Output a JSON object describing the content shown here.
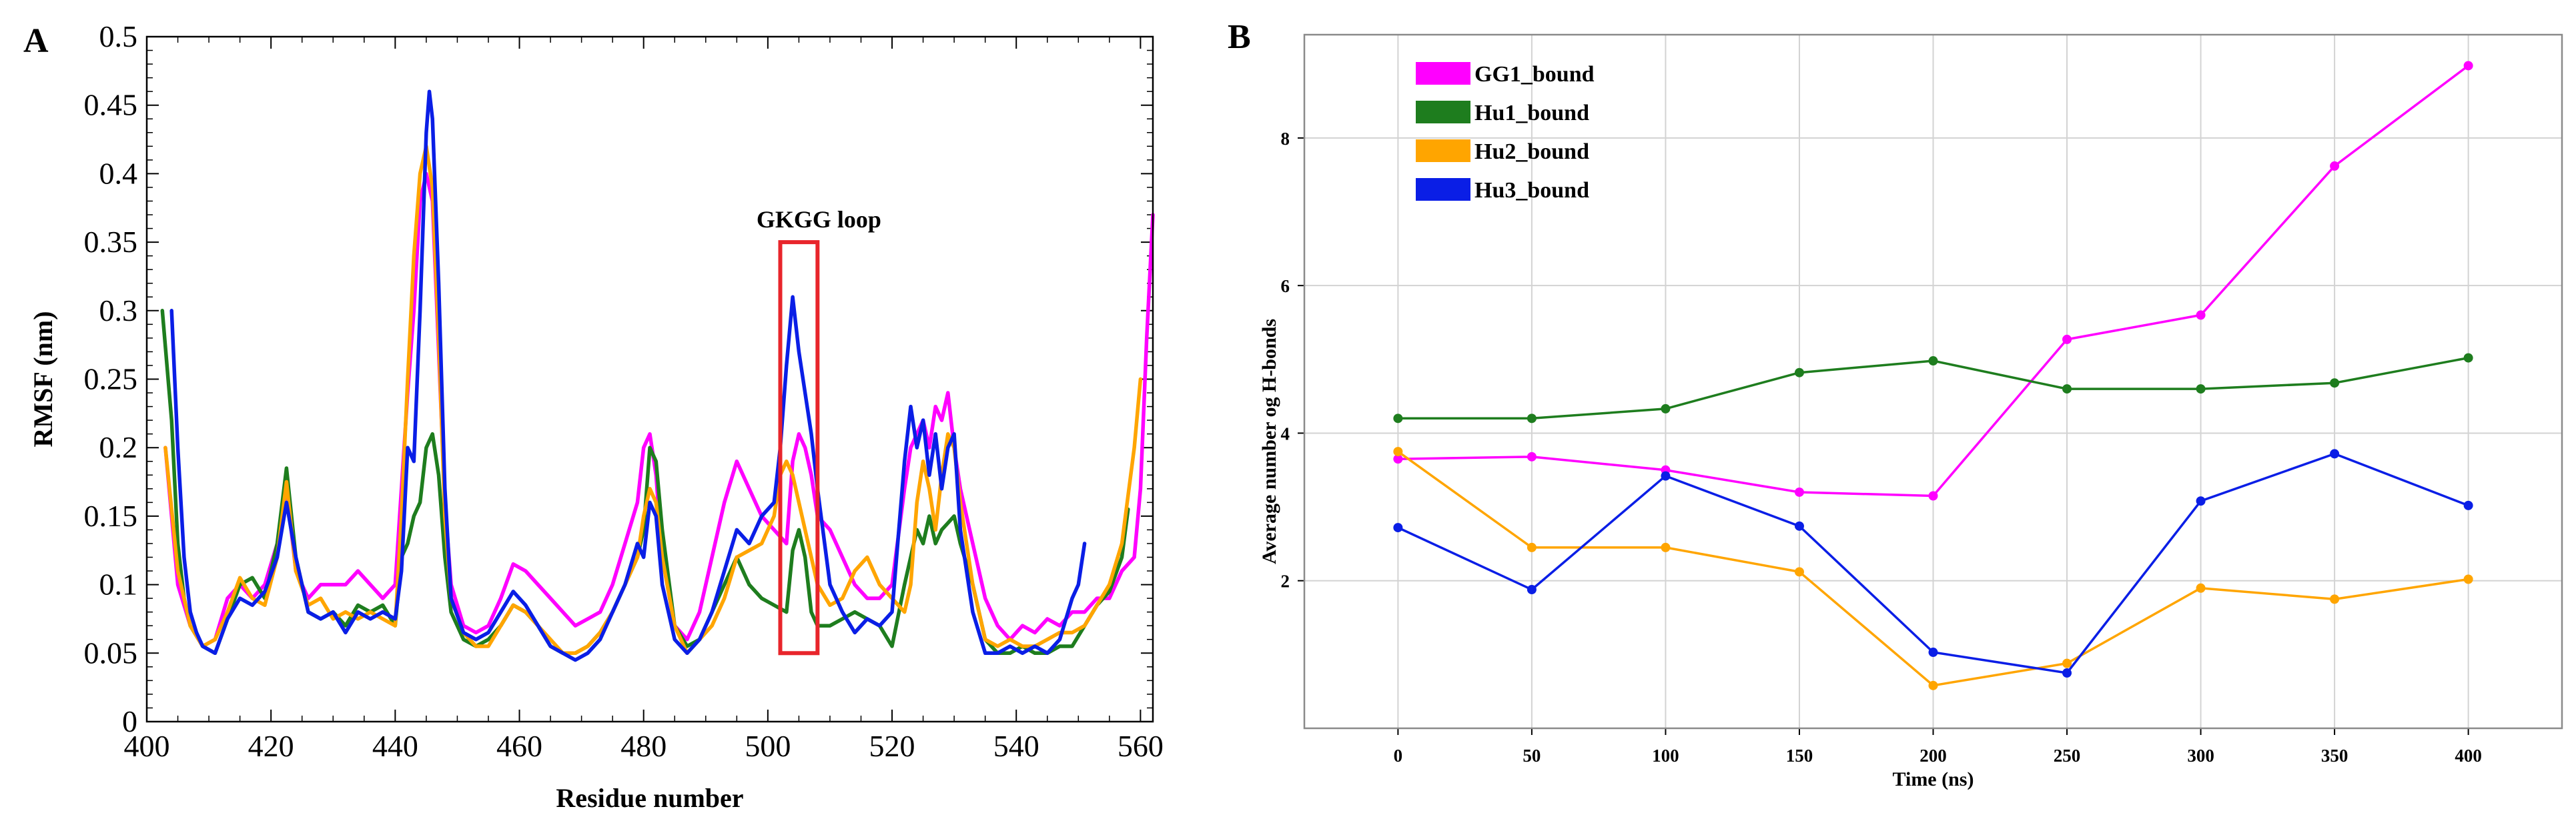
{
  "chart_data": [
    {
      "panel": "A",
      "type": "line",
      "title": "",
      "xlabel": "Residue number",
      "ylabel": "RMSF (nm)",
      "xlim": [
        400,
        562
      ],
      "ylim": [
        0,
        0.5
      ],
      "xticks": [
        400,
        420,
        440,
        460,
        480,
        500,
        520,
        540,
        560
      ],
      "yticks": [
        0,
        0.05,
        0.1,
        0.15,
        0.2,
        0.25,
        0.3,
        0.35,
        0.4,
        0.45,
        0.5
      ],
      "ytick_labels": [
        "0",
        "0.05",
        "0.1",
        "0.15",
        "0.2",
        "0.25",
        "0.3",
        "0.35",
        "0.4",
        "0.45",
        "0.5"
      ],
      "grid": false,
      "annotation": {
        "label": "GKGG loop",
        "x_range": [
          502,
          508
        ],
        "y_range": [
          0.05,
          0.35
        ],
        "color": "#e8252b"
      },
      "series": [
        {
          "name": "GG1_bound",
          "color": "#ff00ff",
          "x": [
            403,
            405,
            407,
            409,
            411,
            413,
            415,
            417,
            419,
            421,
            422.5,
            424,
            426,
            428,
            430,
            432,
            434,
            436,
            438,
            440,
            441,
            442,
            443,
            444,
            445,
            446,
            447,
            448,
            449,
            451,
            453,
            455,
            457,
            459,
            461,
            463,
            465,
            467,
            469,
            471,
            473,
            475,
            477,
            479,
            480,
            481,
            482,
            483,
            485,
            487,
            489,
            491,
            493,
            495,
            497,
            499,
            501,
            503,
            504,
            505,
            506,
            507,
            508,
            510,
            512,
            514,
            516,
            518,
            520,
            522,
            523,
            524,
            525,
            526,
            527,
            528,
            529,
            530,
            531,
            533,
            535,
            537,
            539,
            541,
            543,
            545,
            547,
            549,
            551,
            553,
            555,
            557,
            559,
            560,
            561,
            562
          ],
          "y": [
            0.2,
            0.1,
            0.07,
            0.055,
            0.06,
            0.09,
            0.1,
            0.09,
            0.1,
            0.13,
            0.17,
            0.11,
            0.09,
            0.1,
            0.1,
            0.1,
            0.11,
            0.1,
            0.09,
            0.1,
            0.17,
            0.24,
            0.3,
            0.38,
            0.4,
            0.38,
            0.27,
            0.16,
            0.1,
            0.07,
            0.065,
            0.07,
            0.09,
            0.115,
            0.11,
            0.1,
            0.09,
            0.08,
            0.07,
            0.075,
            0.08,
            0.1,
            0.13,
            0.16,
            0.2,
            0.21,
            0.18,
            0.12,
            0.07,
            0.06,
            0.08,
            0.12,
            0.16,
            0.19,
            0.17,
            0.15,
            0.14,
            0.13,
            0.19,
            0.21,
            0.2,
            0.18,
            0.15,
            0.14,
            0.12,
            0.1,
            0.09,
            0.09,
            0.1,
            0.17,
            0.2,
            0.21,
            0.22,
            0.2,
            0.23,
            0.22,
            0.24,
            0.2,
            0.17,
            0.13,
            0.09,
            0.07,
            0.06,
            0.07,
            0.065,
            0.075,
            0.07,
            0.08,
            0.08,
            0.09,
            0.09,
            0.11,
            0.12,
            0.17,
            0.28,
            0.37
          ]
        },
        {
          "name": "Hu1_bound",
          "color": "#1e7d1e",
          "x": [
            402.5,
            404,
            405,
            406,
            407,
            409,
            411,
            413,
            415,
            417,
            419,
            421,
            422.5,
            424,
            426,
            428,
            430,
            432,
            434,
            436,
            438,
            440,
            441,
            442,
            443,
            444,
            445,
            446,
            447,
            448,
            449,
            451,
            453,
            455,
            457,
            459,
            461,
            463,
            465,
            467,
            469,
            471,
            473,
            475,
            477,
            479,
            480,
            481,
            482,
            483,
            485,
            487,
            489,
            491,
            493,
            495,
            497,
            499,
            501,
            503,
            504,
            505,
            506,
            507,
            508,
            510,
            512,
            514,
            516,
            518,
            520,
            522,
            523,
            524,
            525,
            526,
            527,
            528,
            529,
            530,
            531,
            533,
            535,
            537,
            539,
            541,
            543,
            545,
            547,
            549,
            551,
            553,
            555,
            557,
            558
          ],
          "y": [
            0.3,
            0.22,
            0.13,
            0.09,
            0.07,
            0.055,
            0.05,
            0.075,
            0.1,
            0.105,
            0.09,
            0.13,
            0.185,
            0.12,
            0.08,
            0.075,
            0.08,
            0.07,
            0.085,
            0.08,
            0.085,
            0.07,
            0.12,
            0.13,
            0.15,
            0.16,
            0.2,
            0.21,
            0.18,
            0.12,
            0.08,
            0.06,
            0.055,
            0.06,
            0.07,
            0.085,
            0.08,
            0.07,
            0.055,
            0.05,
            0.05,
            0.055,
            0.065,
            0.08,
            0.1,
            0.12,
            0.14,
            0.2,
            0.19,
            0.14,
            0.07,
            0.055,
            0.06,
            0.08,
            0.1,
            0.12,
            0.1,
            0.09,
            0.085,
            0.08,
            0.125,
            0.14,
            0.12,
            0.08,
            0.07,
            0.07,
            0.075,
            0.08,
            0.075,
            0.07,
            0.055,
            0.1,
            0.12,
            0.14,
            0.13,
            0.15,
            0.13,
            0.14,
            0.145,
            0.15,
            0.13,
            0.1,
            0.06,
            0.05,
            0.05,
            0.055,
            0.05,
            0.05,
            0.055,
            0.055,
            0.07,
            0.085,
            0.095,
            0.12,
            0.155
          ]
        },
        {
          "name": "Hu2_bound",
          "color": "#ffa500",
          "x": [
            403,
            405,
            407,
            409,
            411,
            413,
            415,
            417,
            419,
            421,
            422.5,
            424,
            426,
            428,
            430,
            432,
            434,
            436,
            438,
            440,
            441,
            442,
            443,
            444,
            445,
            446,
            447,
            448,
            449,
            451,
            453,
            455,
            457,
            459,
            461,
            463,
            465,
            467,
            469,
            471,
            473,
            475,
            477,
            479,
            480,
            481,
            482,
            483,
            485,
            487,
            489,
            491,
            493,
            495,
            497,
            499,
            501,
            502,
            503,
            504,
            505,
            506,
            507,
            508,
            510,
            512,
            514,
            516,
            518,
            520,
            522,
            523,
            524,
            525,
            526,
            527,
            528,
            529,
            530,
            531,
            533,
            535,
            537,
            539,
            541,
            543,
            545,
            547,
            549,
            551,
            553,
            555,
            557,
            559,
            560
          ],
          "y": [
            0.2,
            0.11,
            0.07,
            0.055,
            0.06,
            0.08,
            0.105,
            0.09,
            0.085,
            0.12,
            0.175,
            0.11,
            0.085,
            0.09,
            0.075,
            0.08,
            0.075,
            0.08,
            0.075,
            0.07,
            0.15,
            0.25,
            0.34,
            0.4,
            0.42,
            0.39,
            0.28,
            0.15,
            0.09,
            0.065,
            0.055,
            0.055,
            0.07,
            0.085,
            0.08,
            0.07,
            0.06,
            0.05,
            0.05,
            0.055,
            0.065,
            0.08,
            0.1,
            0.12,
            0.15,
            0.17,
            0.16,
            0.12,
            0.07,
            0.05,
            0.06,
            0.07,
            0.09,
            0.12,
            0.125,
            0.13,
            0.15,
            0.18,
            0.19,
            0.18,
            0.16,
            0.14,
            0.12,
            0.1,
            0.085,
            0.09,
            0.11,
            0.12,
            0.1,
            0.09,
            0.08,
            0.1,
            0.16,
            0.19,
            0.17,
            0.14,
            0.18,
            0.21,
            0.2,
            0.16,
            0.1,
            0.06,
            0.055,
            0.06,
            0.055,
            0.055,
            0.06,
            0.065,
            0.065,
            0.07,
            0.085,
            0.1,
            0.13,
            0.2,
            0.25
          ]
        },
        {
          "name": "Hu3_bound",
          "color": "#0a1ee6",
          "x": [
            404,
            405,
            406,
            407,
            408,
            409,
            411,
            413,
            415,
            417,
            419,
            421,
            422.5,
            424,
            426,
            428,
            430,
            432,
            434,
            436,
            438,
            440,
            441,
            442,
            443,
            444,
            445,
            445.5,
            446,
            447,
            448,
            449,
            451,
            453,
            455,
            457,
            459,
            461,
            463,
            465,
            467,
            469,
            471,
            473,
            475,
            477,
            479,
            480,
            481,
            482,
            483,
            485,
            487,
            489,
            491,
            493,
            495,
            497,
            499,
            501,
            502,
            503,
            504,
            505,
            506,
            507,
            508,
            510,
            512,
            514,
            516,
            518,
            520,
            522,
            523,
            524,
            525,
            526,
            527,
            528,
            529,
            530,
            531,
            533,
            535,
            537,
            539,
            541,
            543,
            545,
            547,
            549,
            550,
            551
          ],
          "y": [
            0.3,
            0.2,
            0.12,
            0.08,
            0.065,
            0.055,
            0.05,
            0.075,
            0.09,
            0.085,
            0.095,
            0.12,
            0.16,
            0.12,
            0.08,
            0.075,
            0.08,
            0.065,
            0.08,
            0.075,
            0.08,
            0.075,
            0.11,
            0.2,
            0.19,
            0.3,
            0.43,
            0.46,
            0.44,
            0.32,
            0.17,
            0.09,
            0.065,
            0.06,
            0.065,
            0.08,
            0.095,
            0.085,
            0.07,
            0.055,
            0.05,
            0.045,
            0.05,
            0.06,
            0.08,
            0.1,
            0.13,
            0.12,
            0.16,
            0.15,
            0.1,
            0.06,
            0.05,
            0.06,
            0.08,
            0.11,
            0.14,
            0.13,
            0.15,
            0.16,
            0.2,
            0.26,
            0.31,
            0.27,
            0.24,
            0.21,
            0.17,
            0.1,
            0.08,
            0.065,
            0.075,
            0.07,
            0.08,
            0.19,
            0.23,
            0.2,
            0.22,
            0.18,
            0.21,
            0.17,
            0.2,
            0.21,
            0.14,
            0.08,
            0.05,
            0.05,
            0.055,
            0.05,
            0.055,
            0.05,
            0.06,
            0.09,
            0.1,
            0.13
          ]
        }
      ]
    },
    {
      "panel": "B",
      "type": "line",
      "title": "",
      "xlabel": "Time (ns)",
      "ylabel": "Average number og H-bonds",
      "xlim": [
        -35,
        435
      ],
      "ylim": [
        0,
        9.4
      ],
      "xticks": [
        0,
        50,
        100,
        150,
        200,
        250,
        300,
        350,
        400
      ],
      "yticks": [
        2,
        4,
        6,
        8
      ],
      "grid": true,
      "legend": "top-left",
      "x": [
        0,
        50,
        100,
        150,
        200,
        250,
        300,
        350,
        400
      ],
      "series": [
        {
          "name": "GG1_bound",
          "color": "#ff00ff",
          "values": [
            3.65,
            3.68,
            3.5,
            3.2,
            3.15,
            5.27,
            5.6,
            7.62,
            8.98
          ]
        },
        {
          "name": "Hu1_bound",
          "color": "#1e7d1e",
          "values": [
            4.2,
            4.2,
            4.33,
            4.82,
            4.98,
            4.6,
            4.6,
            4.68,
            5.02
          ]
        },
        {
          "name": "Hu2_bound",
          "color": "#ffa500",
          "values": [
            3.75,
            2.45,
            2.45,
            2.12,
            0.58,
            0.88,
            1.9,
            1.75,
            2.02
          ]
        },
        {
          "name": "Hu3_bound",
          "color": "#0a1ee6",
          "values": [
            2.72,
            1.88,
            3.42,
            2.74,
            1.03,
            0.75,
            3.08,
            3.72,
            3.02
          ]
        }
      ]
    }
  ]
}
